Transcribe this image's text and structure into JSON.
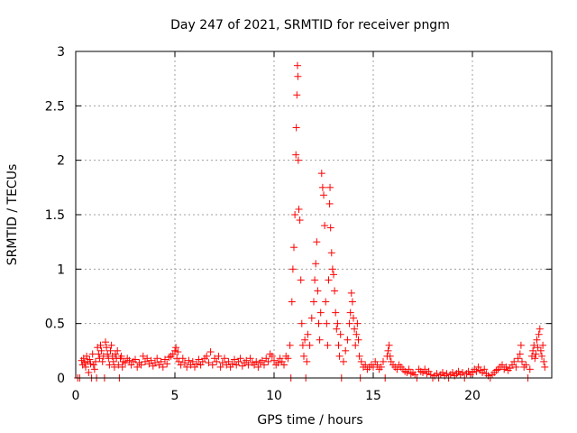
{
  "chart_data": {
    "type": "scatter",
    "title": "Day 247 of 2021, SRMTID for receiver pngm",
    "xlabel": "GPS time / hours",
    "ylabel": "SRMTID / TECUs",
    "xlim": [
      0,
      24
    ],
    "ylim": [
      0,
      3
    ],
    "grid": true,
    "marker": "+",
    "color": "#ff0000",
    "x_ticks": [
      {
        "value": 0,
        "label": "0"
      },
      {
        "value": 5,
        "label": "5"
      },
      {
        "value": 10,
        "label": "10"
      },
      {
        "value": 15,
        "label": "15"
      },
      {
        "value": 20,
        "label": "20"
      }
    ],
    "y_ticks": [
      {
        "value": 0,
        "label": "0"
      },
      {
        "value": 0.5,
        "label": "0.5"
      },
      {
        "value": 1,
        "label": "1"
      },
      {
        "value": 1.5,
        "label": "1.5"
      },
      {
        "value": 2,
        "label": "2"
      },
      {
        "value": 2.5,
        "label": "2.5"
      },
      {
        "value": 3,
        "label": "3"
      }
    ],
    "series": [
      {
        "name": "SRMTID",
        "points": [
          [
            0.1,
            0.0
          ],
          [
            0.2,
            0.0
          ],
          [
            0.3,
            0.16
          ],
          [
            0.35,
            0.12
          ],
          [
            0.4,
            0.18
          ],
          [
            0.45,
            0.14
          ],
          [
            0.5,
            0.1
          ],
          [
            0.55,
            0.2
          ],
          [
            0.6,
            0.15
          ],
          [
            0.65,
            0.05
          ],
          [
            0.7,
            0.17
          ],
          [
            0.75,
            0.13
          ],
          [
            0.8,
            0.0
          ],
          [
            0.85,
            0.22
          ],
          [
            0.9,
            0.12
          ],
          [
            0.95,
            0.08
          ],
          [
            1.0,
            0.15
          ],
          [
            1.05,
            0.0
          ],
          [
            1.1,
            0.28
          ],
          [
            1.15,
            0.22
          ],
          [
            1.2,
            0.18
          ],
          [
            1.25,
            0.3
          ],
          [
            1.3,
            0.25
          ],
          [
            1.35,
            0.15
          ],
          [
            1.4,
            0.2
          ],
          [
            1.45,
            0.0
          ],
          [
            1.5,
            0.33
          ],
          [
            1.55,
            0.28
          ],
          [
            1.6,
            0.22
          ],
          [
            1.65,
            0.18
          ],
          [
            1.7,
            0.12
          ],
          [
            1.75,
            0.25
          ],
          [
            1.8,
            0.3
          ],
          [
            1.85,
            0.2
          ],
          [
            1.9,
            0.15
          ],
          [
            1.95,
            0.1
          ],
          [
            2.0,
            0.22
          ],
          [
            2.05,
            0.18
          ],
          [
            2.1,
            0.25
          ],
          [
            2.15,
            0.12
          ],
          [
            2.2,
            0.0
          ],
          [
            2.25,
            0.18
          ],
          [
            2.3,
            0.2
          ],
          [
            2.35,
            0.1
          ],
          [
            2.4,
            0.15
          ],
          [
            2.5,
            0.14
          ],
          [
            2.6,
            0.18
          ],
          [
            2.7,
            0.16
          ],
          [
            2.8,
            0.12
          ],
          [
            2.9,
            0.15
          ],
          [
            3.0,
            0.17
          ],
          [
            3.1,
            0.1
          ],
          [
            3.2,
            0.14
          ],
          [
            3.3,
            0.12
          ],
          [
            3.4,
            0.2
          ],
          [
            3.5,
            0.15
          ],
          [
            3.6,
            0.18
          ],
          [
            3.7,
            0.13
          ],
          [
            3.8,
            0.16
          ],
          [
            3.9,
            0.11
          ],
          [
            4.0,
            0.14
          ],
          [
            4.1,
            0.18
          ],
          [
            4.2,
            0.12
          ],
          [
            4.3,
            0.15
          ],
          [
            4.4,
            0.1
          ],
          [
            4.5,
            0.17
          ],
          [
            4.6,
            0.13
          ],
          [
            4.7,
            0.19
          ],
          [
            4.8,
            0.2
          ],
          [
            4.9,
            0.22
          ],
          [
            5.0,
            0.25
          ],
          [
            5.05,
            0.28
          ],
          [
            5.1,
            0.18
          ],
          [
            5.15,
            0.24
          ],
          [
            5.2,
            0.15
          ],
          [
            5.3,
            0.12
          ],
          [
            5.4,
            0.18
          ],
          [
            5.5,
            0.14
          ],
          [
            5.6,
            0.1
          ],
          [
            5.7,
            0.16
          ],
          [
            5.8,
            0.12
          ],
          [
            5.9,
            0.15
          ],
          [
            6.0,
            0.1
          ],
          [
            6.1,
            0.13
          ],
          [
            6.2,
            0.17
          ],
          [
            6.3,
            0.12
          ],
          [
            6.4,
            0.15
          ],
          [
            6.5,
            0.18
          ],
          [
            6.6,
            0.2
          ],
          [
            6.7,
            0.14
          ],
          [
            6.8,
            0.24
          ],
          [
            6.9,
            0.12
          ],
          [
            7.0,
            0.18
          ],
          [
            7.1,
            0.15
          ],
          [
            7.2,
            0.2
          ],
          [
            7.3,
            0.1
          ],
          [
            7.4,
            0.14
          ],
          [
            7.5,
            0.18
          ],
          [
            7.6,
            0.12
          ],
          [
            7.7,
            0.15
          ],
          [
            7.8,
            0.1
          ],
          [
            7.9,
            0.13
          ],
          [
            8.0,
            0.17
          ],
          [
            8.1,
            0.12
          ],
          [
            8.2,
            0.15
          ],
          [
            8.3,
            0.18
          ],
          [
            8.4,
            0.11
          ],
          [
            8.5,
            0.14
          ],
          [
            8.6,
            0.16
          ],
          [
            8.7,
            0.12
          ],
          [
            8.8,
            0.18
          ],
          [
            8.9,
            0.14
          ],
          [
            9.0,
            0.12
          ],
          [
            9.1,
            0.15
          ],
          [
            9.2,
            0.1
          ],
          [
            9.3,
            0.14
          ],
          [
            9.4,
            0.16
          ],
          [
            9.5,
            0.12
          ],
          [
            9.6,
            0.18
          ],
          [
            9.7,
            0.15
          ],
          [
            9.8,
            0.22
          ],
          [
            9.9,
            0.2
          ],
          [
            10.0,
            0.16
          ],
          [
            10.1,
            0.12
          ],
          [
            10.2,
            0.14
          ],
          [
            10.3,
            0.18
          ],
          [
            10.4,
            0.15
          ],
          [
            10.5,
            0.12
          ],
          [
            10.6,
            0.2
          ],
          [
            10.7,
            0.18
          ],
          [
            10.8,
            0.3
          ],
          [
            10.85,
            0.0
          ],
          [
            10.9,
            0.7
          ],
          [
            10.95,
            1.0
          ],
          [
            11.0,
            1.2
          ],
          [
            11.05,
            1.5
          ],
          [
            11.1,
            2.05
          ],
          [
            11.12,
            2.3
          ],
          [
            11.15,
            2.6
          ],
          [
            11.18,
            2.87
          ],
          [
            11.2,
            2.77
          ],
          [
            11.22,
            2.0
          ],
          [
            11.25,
            1.55
          ],
          [
            11.3,
            1.45
          ],
          [
            11.35,
            0.9
          ],
          [
            11.4,
            0.5
          ],
          [
            11.45,
            0.3
          ],
          [
            11.5,
            0.2
          ],
          [
            11.55,
            0.35
          ],
          [
            11.6,
            0.0
          ],
          [
            11.65,
            0.15
          ],
          [
            11.7,
            0.4
          ],
          [
            11.8,
            0.3
          ],
          [
            11.9,
            0.55
          ],
          [
            12.0,
            0.7
          ],
          [
            12.05,
            0.9
          ],
          [
            12.1,
            1.05
          ],
          [
            12.15,
            1.25
          ],
          [
            12.2,
            0.8
          ],
          [
            12.25,
            0.5
          ],
          [
            12.3,
            0.35
          ],
          [
            12.35,
            0.6
          ],
          [
            12.4,
            1.88
          ],
          [
            12.45,
            1.75
          ],
          [
            12.5,
            1.68
          ],
          [
            12.55,
            1.4
          ],
          [
            12.6,
            0.7
          ],
          [
            12.65,
            0.5
          ],
          [
            12.7,
            0.3
          ],
          [
            12.75,
            0.9
          ],
          [
            12.8,
            1.6
          ],
          [
            12.82,
            1.75
          ],
          [
            12.85,
            1.38
          ],
          [
            12.9,
            1.15
          ],
          [
            12.95,
            1.0
          ],
          [
            13.0,
            0.95
          ],
          [
            13.05,
            0.8
          ],
          [
            13.1,
            0.6
          ],
          [
            13.15,
            0.45
          ],
          [
            13.2,
            0.5
          ],
          [
            13.25,
            0.3
          ],
          [
            13.3,
            0.2
          ],
          [
            13.35,
            0.4
          ],
          [
            13.4,
            0.0
          ],
          [
            13.5,
            0.15
          ],
          [
            13.6,
            0.25
          ],
          [
            13.7,
            0.35
          ],
          [
            13.8,
            0.5
          ],
          [
            13.85,
            0.6
          ],
          [
            13.9,
            0.78
          ],
          [
            13.95,
            0.7
          ],
          [
            14.0,
            0.55
          ],
          [
            14.05,
            0.45
          ],
          [
            14.1,
            0.3
          ],
          [
            14.15,
            0.4
          ],
          [
            14.2,
            0.5
          ],
          [
            14.25,
            0.35
          ],
          [
            14.3,
            0.2
          ],
          [
            14.35,
            0.0
          ],
          [
            14.4,
            0.15
          ],
          [
            14.5,
            0.1
          ],
          [
            14.6,
            0.12
          ],
          [
            14.7,
            0.08
          ],
          [
            14.8,
            0.1
          ],
          [
            14.9,
            0.12
          ],
          [
            15.0,
            0.1
          ],
          [
            15.1,
            0.15
          ],
          [
            15.2,
            0.12
          ],
          [
            15.3,
            0.08
          ],
          [
            15.4,
            0.1
          ],
          [
            15.5,
            0.15
          ],
          [
            15.6,
            0.0
          ],
          [
            15.7,
            0.2
          ],
          [
            15.75,
            0.25
          ],
          [
            15.8,
            0.3
          ],
          [
            15.85,
            0.2
          ],
          [
            15.9,
            0.15
          ],
          [
            16.0,
            0.12
          ],
          [
            16.1,
            0.1
          ],
          [
            16.2,
            0.08
          ],
          [
            16.3,
            0.12
          ],
          [
            16.4,
            0.1
          ],
          [
            16.5,
            0.08
          ],
          [
            16.6,
            0.06
          ],
          [
            16.7,
            0.05
          ],
          [
            16.8,
            0.08
          ],
          [
            16.9,
            0.04
          ],
          [
            17.0,
            0.05
          ],
          [
            17.1,
            0.03
          ],
          [
            17.2,
            0.0
          ],
          [
            17.3,
            0.08
          ],
          [
            17.4,
            0.06
          ],
          [
            17.5,
            0.05
          ],
          [
            17.6,
            0.08
          ],
          [
            17.7,
            0.04
          ],
          [
            17.8,
            0.06
          ],
          [
            17.9,
            0.03
          ],
          [
            18.0,
            0.0
          ],
          [
            18.1,
            0.02
          ],
          [
            18.2,
            0.04
          ],
          [
            18.3,
            0.0
          ],
          [
            18.4,
            0.03
          ],
          [
            18.5,
            0.05
          ],
          [
            18.6,
            0.02
          ],
          [
            18.7,
            0.04
          ],
          [
            18.8,
            0.0
          ],
          [
            18.9,
            0.03
          ],
          [
            19.0,
            0.05
          ],
          [
            19.1,
            0.02
          ],
          [
            19.2,
            0.04
          ],
          [
            19.3,
            0.06
          ],
          [
            19.4,
            0.03
          ],
          [
            19.5,
            0.05
          ],
          [
            19.6,
            0.0
          ],
          [
            19.7,
            0.04
          ],
          [
            19.8,
            0.06
          ],
          [
            19.9,
            0.03
          ],
          [
            20.0,
            0.05
          ],
          [
            20.1,
            0.08
          ],
          [
            20.2,
            0.06
          ],
          [
            20.3,
            0.1
          ],
          [
            20.4,
            0.07
          ],
          [
            20.5,
            0.05
          ],
          [
            20.6,
            0.08
          ],
          [
            20.7,
            0.04
          ],
          [
            20.8,
            0.02
          ],
          [
            20.9,
            0.0
          ],
          [
            21.0,
            0.03
          ],
          [
            21.1,
            0.05
          ],
          [
            21.2,
            0.07
          ],
          [
            21.3,
            0.08
          ],
          [
            21.4,
            0.1
          ],
          [
            21.5,
            0.12
          ],
          [
            21.6,
            0.08
          ],
          [
            21.7,
            0.1
          ],
          [
            21.8,
            0.07
          ],
          [
            21.9,
            0.09
          ],
          [
            22.0,
            0.12
          ],
          [
            22.1,
            0.15
          ],
          [
            22.2,
            0.1
          ],
          [
            22.3,
            0.18
          ],
          [
            22.4,
            0.22
          ],
          [
            22.45,
            0.3
          ],
          [
            22.5,
            0.15
          ],
          [
            22.6,
            0.1
          ],
          [
            22.7,
            0.12
          ],
          [
            22.8,
            0.0
          ],
          [
            22.9,
            0.08
          ],
          [
            23.0,
            0.2
          ],
          [
            23.05,
            0.25
          ],
          [
            23.1,
            0.3
          ],
          [
            23.15,
            0.18
          ],
          [
            23.2,
            0.22
          ],
          [
            23.25,
            0.35
          ],
          [
            23.3,
            0.28
          ],
          [
            23.35,
            0.4
          ],
          [
            23.4,
            0.45
          ],
          [
            23.45,
            0.25
          ],
          [
            23.5,
            0.2
          ],
          [
            23.55,
            0.3
          ],
          [
            23.6,
            0.15
          ],
          [
            23.65,
            0.1
          ]
        ]
      }
    ]
  }
}
